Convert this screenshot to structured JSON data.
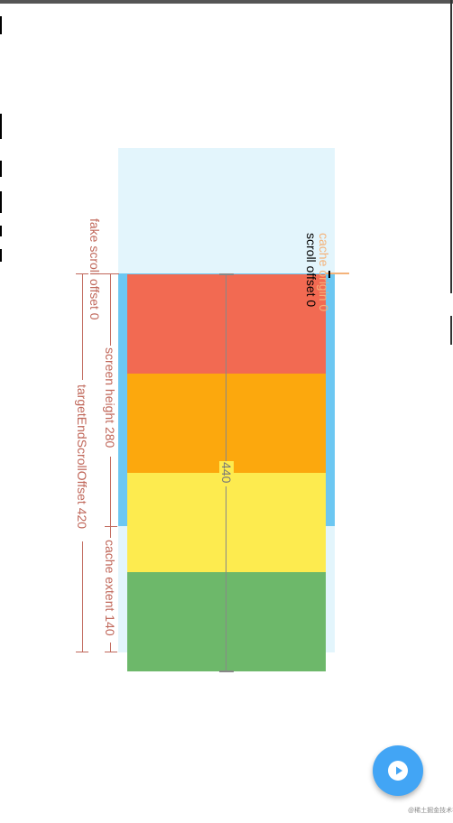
{
  "diagram": {
    "labels": {
      "cache_origin": "cache origin 0",
      "scroll_offset": "scroll offset 0",
      "fake_scroll_offset": "fake scroll offset 0",
      "screen_height": "screen height 280",
      "target_end_scroll_offset": "targetEndScrollOffset 420",
      "cache_extent": "cache extent 140",
      "total_extent": "440"
    },
    "colors": {
      "cache_area": "#e3f5fc",
      "viewport_bar": "#6cc7f2",
      "annotation": "#c0675a",
      "cache_origin": "#f4b37a",
      "measure_line": "#888888",
      "items": [
        "#f26a52",
        "#fca80d",
        "#fdeb4f",
        "#6db86a"
      ]
    }
  },
  "fab": {
    "icon": "play-icon",
    "color": "#42a5f5"
  },
  "watermark": "@稀土掘金技术社区"
}
